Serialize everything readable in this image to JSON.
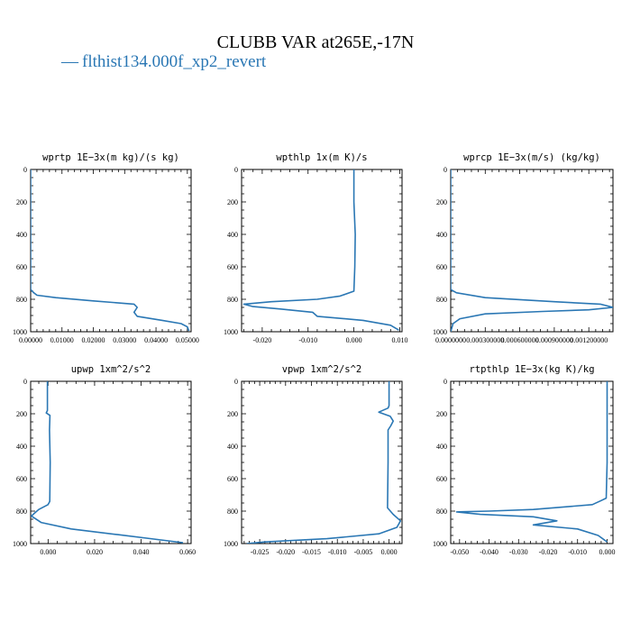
{
  "figure_title": "CLUBB VAR at265E,-17N",
  "legend": {
    "marker": "—",
    "label": "flthist134.000f_xp2_revert"
  },
  "colors": {
    "series": "#2a77b4",
    "axis": "#000000"
  },
  "chart_data": [
    {
      "type": "line",
      "title": "wprtp  1E−3x(m kg)/(s kg)",
      "xlim": [
        0,
        0.0512
      ],
      "ylim": [
        1000,
        0
      ],
      "xticks": [
        0,
        0.01,
        0.02,
        0.03,
        0.04,
        0.05
      ],
      "xtick_labels": [
        "0.00000",
        "0.01000",
        "0.02000",
        "0.03000",
        "0.04000",
        "0.05000"
      ],
      "yticks": [
        0,
        200,
        400,
        600,
        800,
        1000
      ],
      "ytick_labels": [
        "0",
        "200",
        "400",
        "600",
        "800",
        "1000"
      ],
      "series": [
        {
          "x": [
            0,
            0,
            0,
            0.001,
            0.002,
            0.008,
            0.02,
            0.033,
            0.034,
            0.033,
            0.034,
            0.042,
            0.048,
            0.05,
            0.0505
          ],
          "y": [
            0,
            500,
            740,
            760,
            775,
            790,
            810,
            830,
            850,
            880,
            905,
            930,
            950,
            970,
            995
          ]
        }
      ]
    },
    {
      "type": "line",
      "title": "wpthlp  1x(m K)/s",
      "xlim": [
        -0.0245,
        0.0105
      ],
      "ylim": [
        1000,
        0
      ],
      "xticks": [
        -0.02,
        -0.01,
        0,
        0.01
      ],
      "xtick_labels": [
        "-0.020",
        "-0.010",
        "0.000",
        "0.010"
      ],
      "yticks": [
        0,
        200,
        400,
        600,
        800,
        1000
      ],
      "ytick_labels": [
        "0",
        "200",
        "400",
        "600",
        "800",
        "1000"
      ],
      "series": [
        {
          "x": [
            0,
            0,
            0.0003,
            0.0002,
            0,
            -0.003,
            -0.008,
            -0.018,
            -0.024,
            -0.022,
            -0.016,
            -0.009,
            -0.008,
            0.002,
            0.008,
            0.0098
          ],
          "y": [
            0,
            200,
            400,
            600,
            750,
            780,
            800,
            815,
            830,
            845,
            860,
            880,
            905,
            930,
            960,
            990
          ]
        }
      ]
    },
    {
      "type": "line",
      "title": "wprcp  1E−3x(m/s) (kg/kg)",
      "xlim": [
        0,
        0.00141
      ],
      "ylim": [
        1000,
        0
      ],
      "xticks": [
        0,
        0.0003,
        0.0006,
        0.0009,
        0.0012
      ],
      "xtick_labels": [
        "0.0000000",
        "0.000300000",
        "0.000600000",
        "0.000900000",
        "0.001200000"
      ],
      "yticks": [
        0,
        200,
        400,
        600,
        800,
        1000
      ],
      "ytick_labels": [
        "0",
        "200",
        "400",
        "600",
        "800",
        "1000"
      ],
      "series": [
        {
          "x": [
            0,
            0,
            0,
            5e-05,
            0.0003,
            0.0009,
            0.0013,
            0.00141,
            0.0012,
            0.0008,
            0.0003,
            8e-05,
            2e-05,
            0
          ],
          "y": [
            0,
            500,
            740,
            760,
            790,
            815,
            830,
            850,
            865,
            875,
            890,
            920,
            950,
            1000
          ]
        }
      ]
    },
    {
      "type": "line",
      "title": "upwp  1xm^2/s^2",
      "xlim": [
        -0.0075,
        0.0615
      ],
      "ylim": [
        1000,
        0
      ],
      "xticks": [
        0,
        0.02,
        0.04,
        0.06
      ],
      "xtick_labels": [
        "0.000",
        "0.020",
        "0.040",
        "0.060"
      ],
      "yticks": [
        0,
        200,
        400,
        600,
        800,
        1000
      ],
      "ytick_labels": [
        "0",
        "200",
        "400",
        "600",
        "800",
        "1000"
      ],
      "series": [
        {
          "x": [
            -0.0003,
            -0.0003,
            -0.0008,
            0.0008,
            0.0006,
            0.0009,
            0.0007,
            0,
            -0.004,
            -0.0072,
            -0.003,
            0.01,
            0.03,
            0.047,
            0.058
          ],
          "y": [
            0,
            180,
            195,
            210,
            300,
            500,
            740,
            760,
            790,
            830,
            870,
            910,
            945,
            975,
            995
          ]
        }
      ]
    },
    {
      "type": "line",
      "title": "vpwp  1xm^2/s^2",
      "xlim": [
        -0.0285,
        0.0025
      ],
      "ylim": [
        1000,
        0
      ],
      "xticks": [
        -0.025,
        -0.02,
        -0.015,
        -0.01,
        -0.005,
        0
      ],
      "xtick_labels": [
        "-0.025",
        "-0.020",
        "-0.015",
        "-0.010",
        "-0.005",
        "0.000"
      ],
      "yticks": [
        0,
        200,
        400,
        600,
        800,
        1000
      ],
      "ytick_labels": [
        "0",
        "200",
        "400",
        "600",
        "800",
        "1000"
      ],
      "series": [
        {
          "x": [
            0,
            0,
            -0.0002,
            -0.002,
            0.0002,
            0.0008,
            0.0003,
            -0.0002,
            -0.0002,
            -0.0003,
            0.0008,
            0.0022,
            0.0015,
            -0.002,
            -0.012,
            -0.024,
            -0.0275
          ],
          "y": [
            0,
            150,
            165,
            190,
            215,
            245,
            275,
            300,
            500,
            780,
            820,
            860,
            900,
            940,
            970,
            990,
            1000
          ]
        }
      ]
    },
    {
      "type": "line",
      "title": "rtpthlp  1E−3x(kg K)/kg",
      "xlim": [
        -0.053,
        0.002
      ],
      "ylim": [
        1000,
        0
      ],
      "xticks": [
        -0.05,
        -0.04,
        -0.03,
        -0.02,
        -0.01,
        0
      ],
      "xtick_labels": [
        "-0.050",
        "-0.040",
        "-0.030",
        "-0.020",
        "-0.010",
        "0.000"
      ],
      "yticks": [
        0,
        200,
        400,
        600,
        800,
        1000
      ],
      "ytick_labels": [
        "0",
        "200",
        "400",
        "600",
        "800",
        "1000"
      ],
      "series": [
        {
          "x": [
            0,
            0,
            -0.0003,
            -0.002,
            -0.005,
            -0.025,
            -0.04,
            -0.051,
            -0.043,
            -0.025,
            -0.017,
            -0.025,
            -0.01,
            -0.003,
            0
          ],
          "y": [
            0,
            500,
            720,
            735,
            760,
            790,
            800,
            805,
            820,
            835,
            860,
            885,
            910,
            950,
            990
          ]
        }
      ]
    }
  ]
}
